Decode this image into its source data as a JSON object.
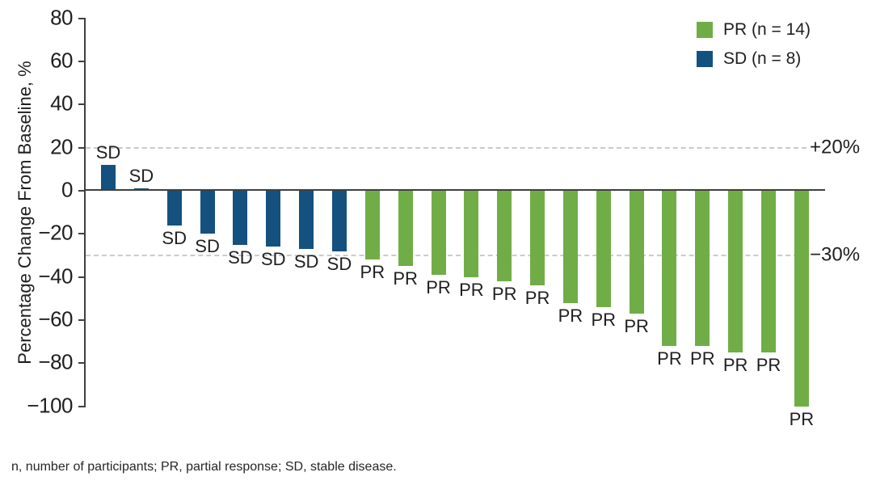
{
  "chart_data": {
    "type": "bar",
    "subtype": "waterfall",
    "title": "",
    "xlabel": "",
    "ylabel": "Percentage Change From Baseline, %",
    "ylim": [
      -100,
      80
    ],
    "yticks": [
      80,
      60,
      40,
      20,
      0,
      -20,
      -40,
      -60,
      -80,
      -100
    ],
    "grid": "reference lines only",
    "legend_position": "top-right",
    "reference_lines": [
      {
        "value": 20,
        "label": "+20%"
      },
      {
        "value": -30,
        "label": "−30%"
      }
    ],
    "legend": [
      {
        "key": "PR",
        "label": "PR (n = 14)",
        "color": "#70AD47"
      },
      {
        "key": "SD",
        "label": "SD (n = 8)",
        "color": "#14517F"
      }
    ],
    "bars": [
      {
        "label": "SD",
        "value": 12
      },
      {
        "label": "SD",
        "value": 1
      },
      {
        "label": "SD",
        "value": -16
      },
      {
        "label": "SD",
        "value": -20
      },
      {
        "label": "SD",
        "value": -25
      },
      {
        "label": "SD",
        "value": -26
      },
      {
        "label": "SD",
        "value": -27
      },
      {
        "label": "SD",
        "value": -28
      },
      {
        "label": "PR",
        "value": -32
      },
      {
        "label": "PR",
        "value": -35
      },
      {
        "label": "PR",
        "value": -39
      },
      {
        "label": "PR",
        "value": -40
      },
      {
        "label": "PR",
        "value": -42
      },
      {
        "label": "PR",
        "value": -44
      },
      {
        "label": "PR",
        "value": -52
      },
      {
        "label": "PR",
        "value": -54
      },
      {
        "label": "PR",
        "value": -57
      },
      {
        "label": "PR",
        "value": -72
      },
      {
        "label": "PR",
        "value": -72
      },
      {
        "label": "PR",
        "value": -75
      },
      {
        "label": "PR",
        "value": -75
      },
      {
        "label": "PR",
        "value": -100
      }
    ]
  },
  "colors": {
    "pr_green": "#70AD47",
    "sd_blue": "#14517F",
    "axis": "#404040",
    "dashed_line": "#CBCBCB",
    "text": "#1F1F1F"
  },
  "footnote": "n, number of participants; PR, partial response; SD, stable disease."
}
